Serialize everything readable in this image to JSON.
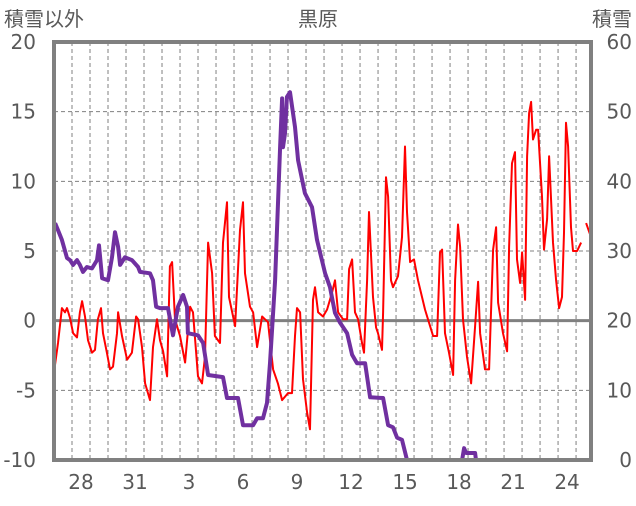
{
  "chart_data": {
    "type": "line",
    "title": "黒原",
    "ylabel_left": "積雪以外",
    "ylabel_right": "積雪",
    "x_unit": "days from Dec 27 00:00",
    "xlim": [
      0,
      29.83
    ],
    "ylim_left": [
      -10,
      20
    ],
    "ylim_right": [
      0,
      60
    ],
    "left_ticks": [
      "20",
      "15",
      "10",
      "5",
      "0",
      "-5",
      "-10"
    ],
    "right_ticks": [
      "60",
      "50",
      "40",
      "30",
      "20",
      "10",
      "0"
    ],
    "x_tick_labels": [
      {
        "label": "28",
        "day": 1.5
      },
      {
        "label": "31",
        "day": 4.5
      },
      {
        "label": "3",
        "day": 7.5
      },
      {
        "label": "6",
        "day": 10.5
      },
      {
        "label": "9",
        "day": 13.5
      },
      {
        "label": "12",
        "day": 16.5
      },
      {
        "label": "15",
        "day": 19.5
      },
      {
        "label": "18",
        "day": 22.5
      },
      {
        "label": "21",
        "day": 25.5
      },
      {
        "label": "24",
        "day": 28.5
      }
    ],
    "grid": true,
    "series": [
      {
        "name": "積雪以外",
        "axis": "left",
        "color": "#ff0000",
        "points": [
          [
            0,
            -3.7
          ],
          [
            0.22,
            -1.6
          ],
          [
            0.44,
            0.9
          ],
          [
            0.61,
            0.6
          ],
          [
            0.72,
            0.9
          ],
          [
            0.89,
            0.2
          ],
          [
            1.06,
            -0.9
          ],
          [
            1.28,
            -1.2
          ],
          [
            1.44,
            0.6
          ],
          [
            1.56,
            1.4
          ],
          [
            1.72,
            0.3
          ],
          [
            1.89,
            -1.4
          ],
          [
            2.11,
            -2.3
          ],
          [
            2.28,
            -2.1
          ],
          [
            2.44,
            0.1
          ],
          [
            2.61,
            0.9
          ],
          [
            2.72,
            -0.9
          ],
          [
            2.94,
            -2.3
          ],
          [
            3.11,
            -3.5
          ],
          [
            3.28,
            -3.3
          ],
          [
            3.5,
            -0.9
          ],
          [
            3.56,
            0.6
          ],
          [
            3.78,
            -1.1
          ],
          [
            4.06,
            -2.8
          ],
          [
            4.33,
            -2.3
          ],
          [
            4.56,
            0.3
          ],
          [
            4.67,
            0.1
          ],
          [
            4.89,
            -1.9
          ],
          [
            5.06,
            -4.5
          ],
          [
            5.33,
            -5.7
          ],
          [
            5.5,
            -1.9
          ],
          [
            5.72,
            0.1
          ],
          [
            5.89,
            -1.4
          ],
          [
            6.06,
            -2.2
          ],
          [
            6.28,
            -4.0
          ],
          [
            6.44,
            3.9
          ],
          [
            6.56,
            4.2
          ],
          [
            6.72,
            0.1
          ],
          [
            7.0,
            -1.1
          ],
          [
            7.28,
            -3.0
          ],
          [
            7.56,
            1.0
          ],
          [
            7.72,
            0.6
          ],
          [
            8.0,
            -4.0
          ],
          [
            8.22,
            -4.5
          ],
          [
            8.39,
            -2.6
          ],
          [
            8.56,
            5.6
          ],
          [
            8.78,
            3.4
          ],
          [
            8.94,
            -1.1
          ],
          [
            9.22,
            -1.6
          ],
          [
            9.39,
            5.6
          ],
          [
            9.61,
            8.5
          ],
          [
            9.72,
            1.7
          ],
          [
            10.06,
            -0.4
          ],
          [
            10.33,
            6.5
          ],
          [
            10.5,
            8.5
          ],
          [
            10.61,
            3.4
          ],
          [
            10.89,
            1.0
          ],
          [
            11.06,
            0.6
          ],
          [
            11.28,
            -1.9
          ],
          [
            11.56,
            0.3
          ],
          [
            11.72,
            0.1
          ],
          [
            11.89,
            -0.1
          ],
          [
            12.17,
            -3.5
          ],
          [
            12.44,
            -4.5
          ],
          [
            12.67,
            -5.7
          ],
          [
            13.0,
            -5.2
          ],
          [
            13.22,
            -5.2
          ],
          [
            13.39,
            -1.1
          ],
          [
            13.5,
            0.9
          ],
          [
            13.67,
            0.6
          ],
          [
            13.83,
            -4.2
          ],
          [
            14.06,
            -6.6
          ],
          [
            14.22,
            -7.8
          ],
          [
            14.39,
            1.5
          ],
          [
            14.5,
            2.4
          ],
          [
            14.67,
            0.6
          ],
          [
            14.94,
            0.3
          ],
          [
            15.17,
            0.8
          ],
          [
            15.44,
            2.0
          ],
          [
            15.61,
            2.9
          ],
          [
            15.78,
            0.6
          ],
          [
            16.06,
            0.1
          ],
          [
            16.28,
            0.1
          ],
          [
            16.39,
            3.7
          ],
          [
            16.56,
            4.4
          ],
          [
            16.72,
            0.6
          ],
          [
            16.89,
            0.1
          ],
          [
            17.11,
            -1.6
          ],
          [
            17.22,
            -2.3
          ],
          [
            17.39,
            2.9
          ],
          [
            17.5,
            7.8
          ],
          [
            17.72,
            1.7
          ],
          [
            17.89,
            -0.5
          ],
          [
            18.0,
            -0.9
          ],
          [
            18.22,
            -2.1
          ],
          [
            18.28,
            0.6
          ],
          [
            18.44,
            10.3
          ],
          [
            18.56,
            8.9
          ],
          [
            18.72,
            2.9
          ],
          [
            18.83,
            2.4
          ],
          [
            19.11,
            3.2
          ],
          [
            19.33,
            6.0
          ],
          [
            19.5,
            12.5
          ],
          [
            19.61,
            7.8
          ],
          [
            19.78,
            4.2
          ],
          [
            20.0,
            4.4
          ],
          [
            20.22,
            2.9
          ],
          [
            20.44,
            1.7
          ],
          [
            20.61,
            0.8
          ],
          [
            20.89,
            -0.4
          ],
          [
            21.06,
            -1.1
          ],
          [
            21.28,
            -1.1
          ],
          [
            21.44,
            4.9
          ],
          [
            21.56,
            5.1
          ],
          [
            21.72,
            -0.9
          ],
          [
            21.94,
            -2.3
          ],
          [
            22.17,
            -3.9
          ],
          [
            22.28,
            2.9
          ],
          [
            22.44,
            6.9
          ],
          [
            22.56,
            5.3
          ],
          [
            22.72,
            0.1
          ],
          [
            22.94,
            -2.6
          ],
          [
            23.17,
            -4.5
          ],
          [
            23.39,
            -0.4
          ],
          [
            23.56,
            2.8
          ],
          [
            23.67,
            -0.9
          ],
          [
            23.94,
            -3.5
          ],
          [
            24.17,
            -3.5
          ],
          [
            24.39,
            5.1
          ],
          [
            24.56,
            6.7
          ],
          [
            24.67,
            1.3
          ],
          [
            24.94,
            -0.9
          ],
          [
            25.17,
            -2.2
          ],
          [
            25.28,
            5.3
          ],
          [
            25.44,
            11.3
          ],
          [
            25.61,
            12.1
          ],
          [
            25.72,
            4.4
          ],
          [
            25.89,
            2.7
          ],
          [
            26.0,
            4.9
          ],
          [
            26.17,
            1.5
          ],
          [
            26.28,
            11.8
          ],
          [
            26.39,
            14.9
          ],
          [
            26.5,
            15.7
          ],
          [
            26.61,
            13.0
          ],
          [
            26.78,
            13.7
          ],
          [
            26.89,
            13.7
          ],
          [
            27.11,
            8.9
          ],
          [
            27.22,
            5.1
          ],
          [
            27.39,
            7.3
          ],
          [
            27.5,
            11.8
          ],
          [
            27.72,
            5.6
          ],
          [
            27.89,
            2.9
          ],
          [
            28.06,
            0.9
          ],
          [
            28.22,
            1.7
          ],
          [
            28.33,
            6.3
          ],
          [
            28.44,
            14.2
          ],
          [
            28.56,
            12.5
          ],
          [
            28.72,
            6.7
          ],
          [
            28.83,
            5.0
          ],
          [
            29.06,
            5.0
          ],
          [
            29.28,
            5.6
          ],
          null,
          [
            29.56,
            7.0
          ],
          [
            29.83,
            6.0
          ]
        ]
      },
      {
        "name": "積雪",
        "axis": "right",
        "color": "#7030a0",
        "points": [
          [
            0.06,
            34.0
          ],
          [
            0.22,
            33.0
          ],
          [
            0.44,
            31.6
          ],
          [
            0.72,
            29.0
          ],
          [
            0.89,
            28.7
          ],
          [
            1.06,
            28.0
          ],
          [
            1.28,
            28.7
          ],
          [
            1.44,
            28.0
          ],
          [
            1.61,
            27.0
          ],
          [
            1.83,
            27.7
          ],
          [
            2.11,
            27.5
          ],
          [
            2.39,
            28.7
          ],
          [
            2.5,
            30.8
          ],
          [
            2.67,
            26.1
          ],
          [
            3.0,
            25.8
          ],
          [
            3.22,
            29.1
          ],
          [
            3.39,
            32.7
          ],
          [
            3.56,
            30.6
          ],
          [
            3.67,
            28.0
          ],
          [
            3.94,
            29.1
          ],
          [
            4.33,
            28.7
          ],
          [
            4.67,
            27.7
          ],
          [
            4.78,
            27.0
          ],
          [
            5.33,
            26.8
          ],
          [
            5.5,
            25.8
          ],
          [
            5.67,
            22.0
          ],
          [
            5.89,
            21.8
          ],
          [
            6.33,
            21.8
          ],
          [
            6.61,
            17.9
          ],
          [
            6.89,
            22.0
          ],
          [
            7.17,
            23.7
          ],
          [
            7.39,
            22.0
          ],
          [
            7.44,
            18.2
          ],
          [
            8.0,
            17.9
          ],
          [
            8.28,
            16.8
          ],
          [
            8.56,
            12.2
          ],
          [
            9.39,
            11.9
          ],
          [
            9.61,
            8.9
          ],
          [
            10.22,
            8.9
          ],
          [
            10.5,
            5.0
          ],
          [
            11.06,
            5.0
          ],
          [
            11.28,
            6.0
          ],
          [
            11.61,
            6.0
          ],
          [
            11.83,
            8.2
          ],
          [
            12.0,
            13.9
          ],
          [
            12.28,
            25.8
          ],
          [
            12.56,
            44.9
          ],
          [
            12.67,
            51.9
          ],
          [
            12.72,
            44.9
          ],
          [
            12.83,
            46.9
          ],
          [
            12.94,
            52.1
          ],
          [
            13.11,
            52.8
          ],
          [
            13.39,
            47.8
          ],
          [
            13.56,
            43.0
          ],
          [
            13.94,
            38.3
          ],
          [
            14.33,
            36.3
          ],
          [
            14.61,
            31.6
          ],
          [
            15.06,
            26.8
          ],
          [
            15.33,
            24.8
          ],
          [
            15.61,
            21.1
          ],
          [
            15.89,
            19.7
          ],
          [
            16.28,
            18.2
          ],
          [
            16.56,
            15.1
          ],
          [
            16.83,
            13.9
          ],
          [
            17.28,
            13.9
          ],
          [
            17.56,
            9.0
          ],
          [
            18.28,
            8.9
          ],
          [
            18.56,
            5.0
          ],
          [
            18.83,
            4.7
          ],
          [
            19.06,
            3.2
          ],
          [
            19.33,
            2.9
          ],
          [
            19.61,
            0
          ],
          [
            22.67,
            0
          ],
          [
            22.78,
            1.7
          ],
          [
            22.89,
            1.0
          ],
          [
            23.39,
            1.0
          ],
          [
            23.44,
            0
          ],
          [
            29.83,
            0
          ]
        ]
      }
    ]
  }
}
